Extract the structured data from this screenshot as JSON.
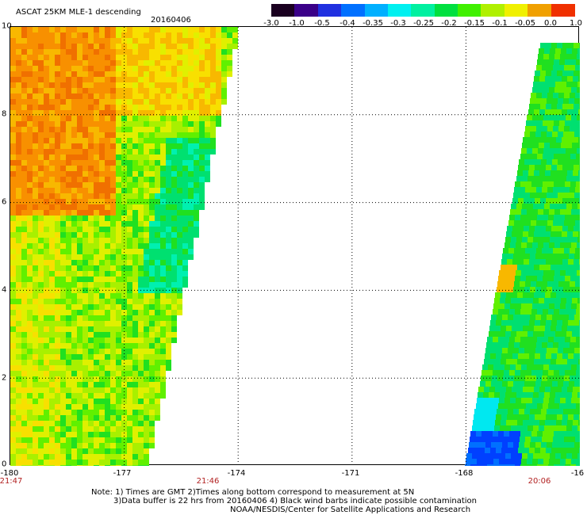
{
  "header": {
    "title": "ASCAT 25KM MLE-1 descending",
    "date": "20160406"
  },
  "colorbar": {
    "labels": [
      "-3.0",
      "-1.0",
      "-0.5",
      "-0.4",
      "-0.35",
      "-0.3",
      "-0.25",
      "-0.2",
      "-0.15",
      "-0.1",
      "-0.05",
      "0.0",
      "1.0"
    ],
    "colors": [
      "#1a0020",
      "#3a0088",
      "#2030e0",
      "#0070ff",
      "#00b0ff",
      "#00f0f0",
      "#00f0a0",
      "#00e040",
      "#40f000",
      "#b0f000",
      "#f0f000",
      "#f0a000",
      "#f03000"
    ]
  },
  "axes": {
    "y_labels": [
      "10",
      "8",
      "6",
      "4",
      "2",
      "0"
    ],
    "x_labels": [
      "-180",
      "-177",
      "-174",
      "-171",
      "-168",
      "-16"
    ],
    "time_labels": [
      "21:47",
      "21:46",
      "20:06"
    ]
  },
  "chart_data": {
    "type": "heatmap",
    "title": "ASCAT 25KM MLE-1 descending",
    "xlim": [
      -180,
      -165
    ],
    "ylim": [
      0,
      10
    ],
    "grid": true,
    "swaths": [
      {
        "pass_time": "21:47",
        "lon_range": [
          -180,
          -174.2
        ],
        "dominant_values": "-0.2 to 0.0"
      },
      {
        "pass_time": "20:06",
        "lon_range": [
          -168,
          -165
        ],
        "dominant_values": "-0.3 to -0.15"
      }
    ]
  },
  "notes": [
    "Note: 1) Times are GMT 2)Times along bottom correspond to measurement at 5N",
    "3)Data buffer is 22 hrs from 20160406 4) Black wind barbs indicate possible contamination",
    "NOAA/NESDIS/Center for Satellite Applications and Research"
  ]
}
